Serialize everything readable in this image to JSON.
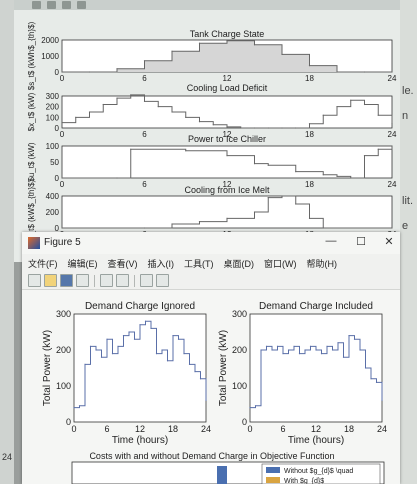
{
  "back_figure": {
    "subplots": [
      {
        "title": "Tank Charge State",
        "ylabel": "$s_t$ (kWh$_{th}$)",
        "yticks": [
          "0",
          "1000",
          "2000"
        ],
        "ymax": 2000
      },
      {
        "title": "Cooling Load Deficit",
        "ylabel": "$x_t$ (kW)",
        "yticks": [
          "0",
          "100",
          "200",
          "300"
        ],
        "ymax": 300
      },
      {
        "title": "Power to Ice Chiller",
        "ylabel": "$u_t$ (kW)",
        "yticks": [
          "0",
          "50",
          "100"
        ],
        "ymax": 100
      },
      {
        "title": "Cooling from Ice Melt",
        "ylabel": "$u_t$ (kW$_{th}$)",
        "yticks": [
          "0",
          "200",
          "400"
        ],
        "ymax": 400
      }
    ],
    "xticks": [
      "0",
      "6",
      "12",
      "18",
      "24"
    ]
  },
  "figure5": {
    "window_title": "Figure 5",
    "controls": {
      "minimize": "—",
      "maximize": "☐",
      "close": "✕"
    },
    "menu": [
      "文件(F)",
      "编辑(E)",
      "查看(V)",
      "插入(I)",
      "工具(T)",
      "桌面(D)",
      "窗口(W)",
      "帮助(H)"
    ],
    "toolbar_icons": [
      "new-icon",
      "open-icon",
      "save-icon",
      "print-icon",
      "insert-colorbar-icon",
      "insert-legend-icon",
      "select-arrow-icon",
      "plot-tools-icon"
    ],
    "left_plot": {
      "title": "Demand Charge Ignored",
      "xlabel": "Time (hours)",
      "ylabel": "Total Power (kW)"
    },
    "right_plot": {
      "title": "Demand Charge Included",
      "xlabel": "Time (hours)",
      "ylabel": "Total Power (kW)"
    },
    "bottom_plot": {
      "title": "Costs with and without Demand Charge in Objective Function",
      "legend": [
        "Without $g_{d}$ \\quad",
        "With $g_{d}$"
      ]
    }
  },
  "chart_data": [
    {
      "type": "area",
      "title": "Tank Charge State",
      "x": [
        0,
        2,
        4,
        6,
        8,
        10,
        12,
        14,
        16,
        18,
        20,
        22,
        24
      ],
      "values": [
        0,
        0,
        200,
        700,
        1300,
        1800,
        1950,
        1700,
        1100,
        400,
        0,
        0,
        0
      ],
      "ylim": [
        0,
        2000
      ]
    },
    {
      "type": "line",
      "title": "Cooling Load Deficit",
      "x": [
        0,
        1,
        2,
        3,
        4,
        5,
        6,
        7,
        8,
        9,
        10,
        11,
        12,
        13,
        14,
        15,
        16,
        17,
        18,
        19,
        20,
        21,
        22,
        23,
        24
      ],
      "values": [
        50,
        100,
        150,
        220,
        280,
        310,
        250,
        200,
        150,
        100,
        60,
        30,
        10,
        0,
        0,
        0,
        0,
        0,
        40,
        120,
        200,
        260,
        220,
        120,
        40
      ],
      "ylim": [
        0,
        300
      ]
    },
    {
      "type": "line",
      "title": "Power to Ice Chiller",
      "x": [
        0,
        4,
        5,
        9,
        12,
        14,
        15,
        17,
        19,
        20,
        21,
        22,
        23,
        24
      ],
      "values": [
        0,
        0,
        90,
        85,
        70,
        45,
        40,
        20,
        10,
        5,
        0,
        70,
        90,
        100
      ],
      "ylim": [
        0,
        100
      ]
    },
    {
      "type": "line",
      "title": "Cooling from Ice Melt",
      "x": [
        0,
        6,
        8,
        10,
        12,
        14,
        15,
        16,
        17,
        18,
        19,
        24
      ],
      "values": [
        0,
        0,
        50,
        80,
        120,
        200,
        380,
        400,
        300,
        120,
        0,
        0
      ],
      "ylim": [
        0,
        400
      ]
    },
    {
      "type": "line",
      "title": "Demand Charge Ignored",
      "xlabel": "Time (hours)",
      "ylabel": "Total Power (kW)",
      "x": [
        0,
        1,
        2,
        3,
        4,
        5,
        6,
        7,
        8,
        9,
        10,
        11,
        12,
        13,
        14,
        15,
        16,
        17,
        18,
        19,
        20,
        21,
        22,
        23,
        24
      ],
      "values": [
        40,
        45,
        160,
        210,
        200,
        180,
        230,
        190,
        210,
        240,
        250,
        230,
        270,
        280,
        260,
        190,
        200,
        170,
        240,
        230,
        190,
        160,
        140,
        120,
        60
      ],
      "ylim": [
        0,
        300
      ],
      "xlim": [
        0,
        24
      ]
    },
    {
      "type": "line",
      "title": "Demand Charge Included",
      "xlabel": "Time (hours)",
      "ylabel": "Total Power (kW)",
      "x": [
        0,
        1,
        2,
        3,
        4,
        5,
        6,
        7,
        8,
        9,
        10,
        11,
        12,
        13,
        14,
        15,
        16,
        17,
        18,
        19,
        20,
        21,
        22,
        23,
        24
      ],
      "values": [
        40,
        45,
        200,
        210,
        200,
        210,
        190,
        200,
        210,
        190,
        200,
        210,
        200,
        190,
        210,
        200,
        220,
        180,
        240,
        230,
        200,
        150,
        120,
        110,
        60
      ],
      "ylim": [
        0,
        300
      ],
      "xlim": [
        0,
        24
      ]
    },
    {
      "type": "bar",
      "title": "Costs with and without Demand Charge in Objective Function",
      "series": [
        {
          "name": "Without $g_{d}$ \\quad",
          "values": []
        },
        {
          "name": "With $g_{d}$",
          "values": []
        }
      ]
    }
  ]
}
